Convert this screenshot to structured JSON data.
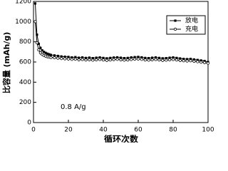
{
  "chart_data": {
    "type": "line",
    "y_label": "比容量 (mAh/g)",
    "x_label": "循环次数",
    "annotation": "0.8 A/g",
    "x": [
      1,
      2,
      3,
      4,
      5,
      6,
      7,
      8,
      9,
      10,
      12,
      14,
      16,
      18,
      20,
      22,
      24,
      26,
      28,
      30,
      32,
      34,
      36,
      38,
      40,
      42,
      44,
      46,
      48,
      50,
      52,
      54,
      56,
      58,
      60,
      62,
      64,
      66,
      68,
      70,
      72,
      74,
      76,
      78,
      80,
      82,
      84,
      86,
      88,
      90,
      92,
      94,
      96,
      98,
      100
    ],
    "series": [
      {
        "name": "放电",
        "color": "#000000",
        "marker": "square",
        "values": [
          1180,
          870,
          780,
          740,
          715,
          700,
          690,
          682,
          676,
          670,
          665,
          660,
          655,
          652,
          650,
          645,
          648,
          642,
          645,
          640,
          643,
          638,
          642,
          645,
          640,
          636,
          640,
          644,
          646,
          642,
          638,
          640,
          645,
          648,
          650,
          646,
          640,
          638,
          642,
          645,
          640,
          636,
          638,
          642,
          645,
          640,
          635,
          630,
          628,
          630,
          625,
          620,
          615,
          610,
          600
        ]
      },
      {
        "name": "充电",
        "color": "#000000",
        "marker": "circle",
        "values": [
          1000,
          790,
          720,
          690,
          675,
          665,
          658,
          652,
          648,
          645,
          642,
          638,
          634,
          632,
          630,
          626,
          628,
          622,
          625,
          620,
          623,
          618,
          622,
          625,
          620,
          616,
          620,
          624,
          626,
          622,
          618,
          620,
          625,
          628,
          630,
          626,
          620,
          618,
          622,
          625,
          620,
          616,
          618,
          622,
          625,
          620,
          615,
          612,
          610,
          612,
          607,
          603,
          598,
          594,
          588
        ]
      }
    ],
    "xlim": [
      0,
      100
    ],
    "xticks": [
      0,
      20,
      40,
      60,
      80,
      100
    ],
    "ylim": [
      0,
      1200
    ],
    "yticks": [
      0,
      200,
      400,
      600,
      800,
      1000,
      1200
    ],
    "legend": "upper right"
  }
}
